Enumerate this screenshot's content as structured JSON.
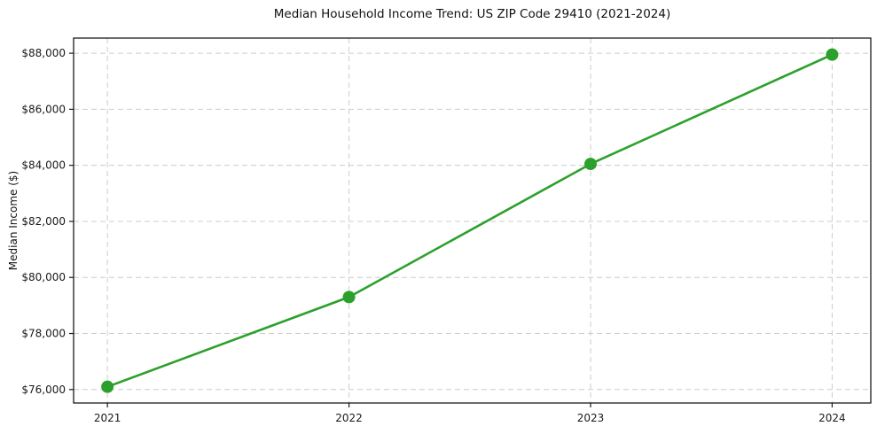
{
  "chart_data": {
    "type": "line",
    "title": "Median Household Income Trend: US ZIP Code 29410 (2021-2024)",
    "xlabel": "",
    "ylabel": "Median Income ($)",
    "categories": [
      "2021",
      "2022",
      "2023",
      "2024"
    ],
    "x": [
      2021,
      2022,
      2023,
      2024
    ],
    "series": [
      {
        "name": "Median Household Income",
        "values": [
          76100,
          79300,
          84050,
          87950
        ]
      }
    ],
    "y_ticks": [
      76000,
      78000,
      80000,
      82000,
      84000,
      86000,
      88000
    ],
    "y_tick_labels": [
      "$76,000",
      "$78,000",
      "$80,000",
      "$82,000",
      "$84,000",
      "$86,000",
      "$88,000"
    ],
    "xlim": [
      2020.86,
      2024.16
    ],
    "ylim": [
      75520,
      88540
    ],
    "grid": true,
    "legend_position": "none",
    "line_color": "#2ca02c",
    "marker": "circle",
    "grid_color": "#cccccc",
    "spine_color": "#1a1a1a",
    "tick_color": "#1a1a1a",
    "text_color": "#1a1a1a",
    "background_color": "#ffffff"
  }
}
